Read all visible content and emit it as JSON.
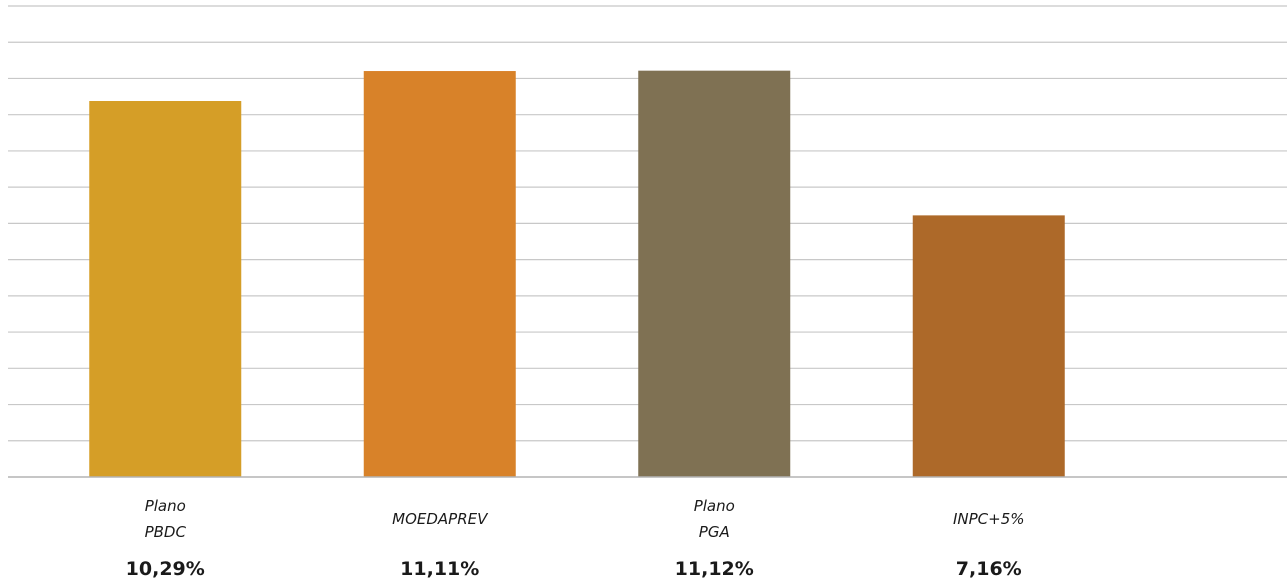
{
  "chart_data": {
    "type": "bar",
    "categories": [
      [
        "Plano",
        "PBDC"
      ],
      [
        "MOEDAPREV"
      ],
      [
        "Plano",
        "PGA"
      ],
      [
        "INPC+5%"
      ]
    ],
    "values": [
      10.29,
      11.11,
      11.12,
      7.16
    ],
    "value_labels": [
      "10,29%",
      "11,11%",
      "11,12%",
      "7,16%"
    ],
    "colors": [
      "#d59e27",
      "#d88229",
      "#7f7153",
      "#ad6929"
    ],
    "ylim": [
      0,
      12.89
    ],
    "grid": true,
    "gridline_count": 13,
    "grid_color": "#c8c8c8",
    "axis_color": "#b4b4b4",
    "xlabel": "",
    "ylabel": ""
  }
}
